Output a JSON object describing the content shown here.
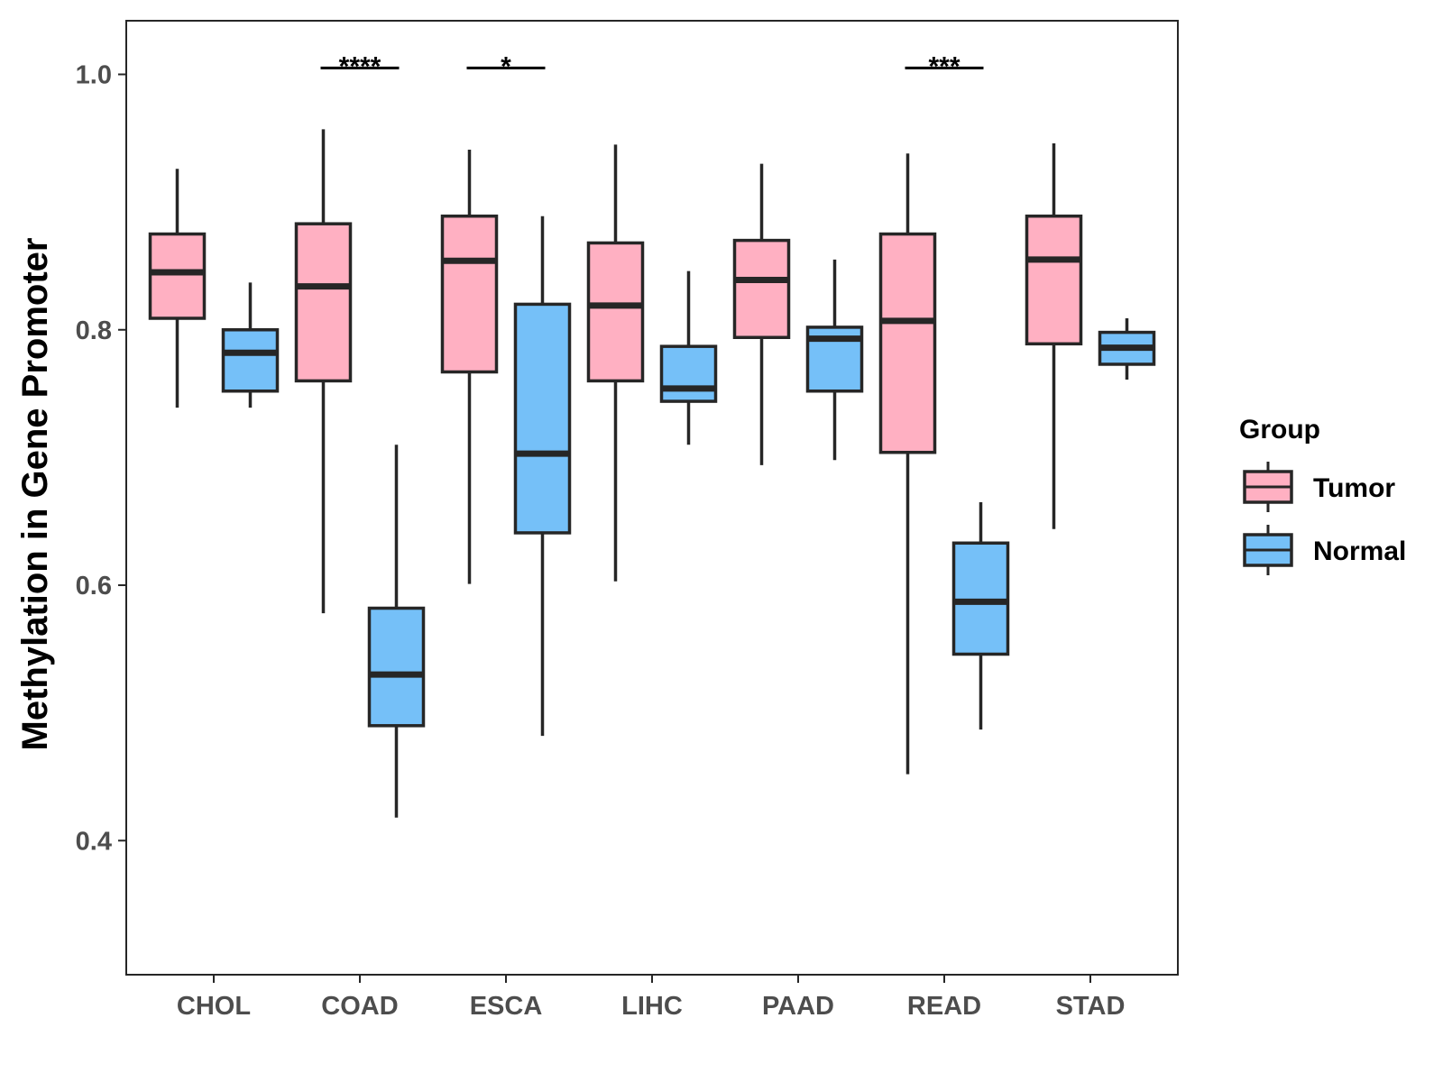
{
  "chart_data": {
    "type": "boxplot",
    "title": "",
    "xlabel": "",
    "ylabel": "Methylation in Gene Promoter",
    "ylim": [
      0.295,
      1.042
    ],
    "yticks": [
      0.4,
      0.6,
      0.8,
      1.0
    ],
    "ytick_labels": [
      "0.4",
      "0.6",
      "0.8",
      "1.0"
    ],
    "categories": [
      "CHOL",
      "COAD",
      "ESCA",
      "LIHC",
      "PAAD",
      "READ",
      "STAD"
    ],
    "grid": false,
    "legend": {
      "title": "Group",
      "position": "right",
      "entries": [
        "Tumor",
        "Normal"
      ]
    },
    "colors": {
      "Tumor": "#ffb0c2",
      "Normal": "#75c0f8",
      "outline": "#262626"
    },
    "series": [
      {
        "name": "Tumor",
        "boxes": [
          {
            "category": "CHOL",
            "whisker_low": 0.739,
            "q1": 0.809,
            "median": 0.845,
            "q3": 0.875,
            "whisker_high": 0.926
          },
          {
            "category": "COAD",
            "whisker_low": 0.578,
            "q1": 0.76,
            "median": 0.834,
            "q3": 0.883,
            "whisker_high": 0.957
          },
          {
            "category": "ESCA",
            "whisker_low": 0.601,
            "q1": 0.767,
            "median": 0.854,
            "q3": 0.889,
            "whisker_high": 0.941
          },
          {
            "category": "LIHC",
            "whisker_low": 0.603,
            "q1": 0.76,
            "median": 0.819,
            "q3": 0.868,
            "whisker_high": 0.945
          },
          {
            "category": "PAAD",
            "whisker_low": 0.694,
            "q1": 0.794,
            "median": 0.839,
            "q3": 0.87,
            "whisker_high": 0.93
          },
          {
            "category": "READ",
            "whisker_low": 0.452,
            "q1": 0.704,
            "median": 0.807,
            "q3": 0.875,
            "whisker_high": 0.938
          },
          {
            "category": "STAD",
            "whisker_low": 0.644,
            "q1": 0.789,
            "median": 0.855,
            "q3": 0.889,
            "whisker_high": 0.946
          }
        ]
      },
      {
        "name": "Normal",
        "boxes": [
          {
            "category": "CHOL",
            "whisker_low": 0.739,
            "q1": 0.752,
            "median": 0.782,
            "q3": 0.8,
            "whisker_high": 0.837
          },
          {
            "category": "COAD",
            "whisker_low": 0.418,
            "q1": 0.49,
            "median": 0.53,
            "q3": 0.582,
            "whisker_high": 0.71
          },
          {
            "category": "ESCA",
            "whisker_low": 0.482,
            "q1": 0.641,
            "median": 0.703,
            "q3": 0.82,
            "whisker_high": 0.889
          },
          {
            "category": "LIHC",
            "whisker_low": 0.71,
            "q1": 0.744,
            "median": 0.754,
            "q3": 0.787,
            "whisker_high": 0.846
          },
          {
            "category": "PAAD",
            "whisker_low": 0.698,
            "q1": 0.752,
            "median": 0.793,
            "q3": 0.802,
            "whisker_high": 0.855
          },
          {
            "category": "READ",
            "whisker_low": 0.487,
            "q1": 0.546,
            "median": 0.587,
            "q3": 0.633,
            "whisker_high": 0.665
          },
          {
            "category": "STAD",
            "whisker_low": 0.761,
            "q1": 0.773,
            "median": 0.786,
            "q3": 0.798,
            "whisker_high": 0.809
          }
        ]
      }
    ],
    "annotations": [
      {
        "category": "COAD",
        "text": "****",
        "y": 1.005
      },
      {
        "category": "ESCA",
        "text": "*",
        "y": 1.005
      },
      {
        "category": "READ",
        "text": "***",
        "y": 1.005
      }
    ]
  }
}
